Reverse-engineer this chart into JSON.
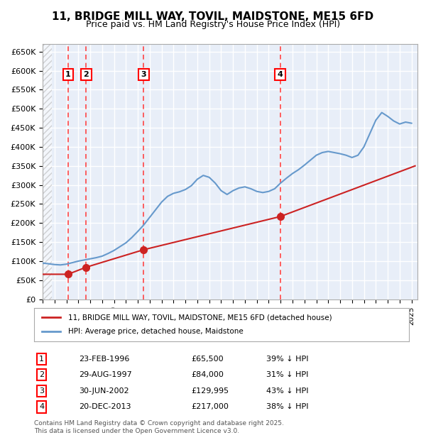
{
  "title_line1": "11, BRIDGE MILL WAY, TOVIL, MAIDSTONE, ME15 6FD",
  "title_line2": "Price paid vs. HM Land Registry's House Price Index (HPI)",
  "ylabel": "",
  "ylim": [
    0,
    670000
  ],
  "yticks": [
    0,
    50000,
    100000,
    150000,
    200000,
    250000,
    300000,
    350000,
    400000,
    450000,
    500000,
    550000,
    600000,
    650000
  ],
  "ytick_labels": [
    "£0",
    "£50K",
    "£100K",
    "£150K",
    "£200K",
    "£250K",
    "£300K",
    "£350K",
    "£400K",
    "£450K",
    "£500K",
    "£550K",
    "£600K",
    "£650K"
  ],
  "xlim_start": 1994.0,
  "xlim_end": 2025.5,
  "background_color": "#e8eef8",
  "plot_bg_color": "#e8eef8",
  "grid_color": "#ffffff",
  "hpi_color": "#6699cc",
  "price_color": "#cc2222",
  "sale_marker_color": "#cc2222",
  "vline_color": "#ff4444",
  "transactions": [
    {
      "num": 1,
      "date_str": "23-FEB-1996",
      "date_x": 1996.14,
      "price": 65500,
      "pct": "39%",
      "label": "£65,500"
    },
    {
      "num": 2,
      "date_str": "29-AUG-1997",
      "date_x": 1997.66,
      "price": 84000,
      "pct": "31%",
      "label": "£84,000"
    },
    {
      "num": 3,
      "date_str": "30-JUN-2002",
      "date_x": 2002.5,
      "price": 129995,
      "pct": "43%",
      "label": "£129,995"
    },
    {
      "num": 4,
      "date_str": "20-DEC-2013",
      "date_x": 2013.97,
      "price": 217000,
      "pct": "38%",
      "label": "£217,000"
    }
  ],
  "hpi_data_x": [
    1994.0,
    1994.5,
    1995.0,
    1995.5,
    1996.0,
    1996.5,
    1997.0,
    1997.5,
    1998.0,
    1998.5,
    1999.0,
    1999.5,
    2000.0,
    2000.5,
    2001.0,
    2001.5,
    2002.0,
    2002.5,
    2003.0,
    2003.5,
    2004.0,
    2004.5,
    2005.0,
    2005.5,
    2006.0,
    2006.5,
    2007.0,
    2007.5,
    2008.0,
    2008.5,
    2009.0,
    2009.5,
    2010.0,
    2010.5,
    2011.0,
    2011.5,
    2012.0,
    2012.5,
    2013.0,
    2013.5,
    2014.0,
    2014.5,
    2015.0,
    2015.5,
    2016.0,
    2016.5,
    2017.0,
    2017.5,
    2018.0,
    2018.5,
    2019.0,
    2019.5,
    2020.0,
    2020.5,
    2021.0,
    2021.5,
    2022.0,
    2022.5,
    2023.0,
    2023.5,
    2024.0,
    2024.5,
    2025.0
  ],
  "hpi_data_y": [
    95000,
    93000,
    91000,
    90000,
    92000,
    96000,
    100000,
    103000,
    106000,
    109000,
    113000,
    120000,
    128000,
    138000,
    148000,
    162000,
    178000,
    195000,
    215000,
    235000,
    255000,
    270000,
    278000,
    282000,
    288000,
    298000,
    315000,
    325000,
    320000,
    305000,
    285000,
    275000,
    285000,
    292000,
    295000,
    290000,
    283000,
    280000,
    283000,
    290000,
    305000,
    318000,
    330000,
    340000,
    352000,
    365000,
    378000,
    385000,
    388000,
    385000,
    382000,
    378000,
    372000,
    378000,
    400000,
    435000,
    470000,
    490000,
    480000,
    468000,
    460000,
    465000,
    462000
  ],
  "price_line_x": [
    1994.0,
    1996.14,
    1997.66,
    2002.5,
    2013.97,
    2025.3
  ],
  "price_line_y": [
    65500,
    65500,
    84000,
    129995,
    217000,
    350000
  ],
  "legend_label_red": "11, BRIDGE MILL WAY, TOVIL, MAIDSTONE, ME15 6FD (detached house)",
  "legend_label_blue": "HPI: Average price, detached house, Maidstone",
  "footer": "Contains HM Land Registry data © Crown copyright and database right 2025.\nThis data is licensed under the Open Government Licence v3.0.",
  "hatch_color": "#cccccc"
}
